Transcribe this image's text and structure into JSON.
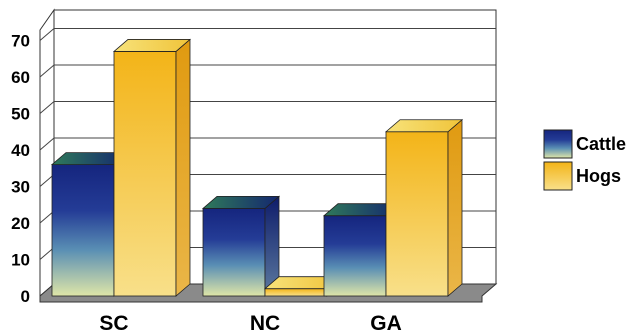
{
  "chart_data": {
    "type": "bar",
    "title": "",
    "xlabel": "",
    "ylabel": "",
    "categories": [
      "SC",
      "NC",
      "GA"
    ],
    "series": [
      {
        "name": "Cattle",
        "values": [
          36,
          24,
          22
        ]
      },
      {
        "name": "Hogs",
        "values": [
          67,
          2,
          45
        ]
      }
    ],
    "ylim": [
      0,
      70
    ],
    "yticks": [
      "0",
      "10",
      "20",
      "30",
      "40",
      "50",
      "60",
      "70"
    ],
    "grid": true,
    "legend_position": "right",
    "style": "3d",
    "colors": {
      "cattle_top": "#1a2c8c",
      "cattle_mid": "#3d6fb0",
      "cattle_bottom": "#d9e3a6",
      "hogs_top": "#f2b818",
      "hogs_bottom": "#f7dc78"
    }
  }
}
